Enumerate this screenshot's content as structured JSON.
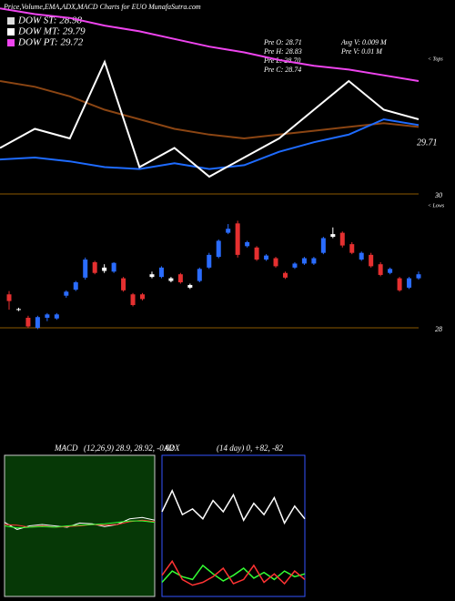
{
  "header": {
    "title": "Price,Volume,EMA,ADX,MACD Charts for EUO MunafaSutra.com",
    "legend": [
      {
        "label": "DOW ST: 28.98",
        "color": "#dddddd"
      },
      {
        "label": "DOW MT: 29.79",
        "color": "#ffffff"
      },
      {
        "label": "DOW PT: 29.72",
        "color": "#ee44ee"
      }
    ],
    "stats": [
      "Pre O: 28.71",
      "Avg V: 0.009 M",
      "Pre H: 28.83",
      "Pre V: 0.01 M",
      "Pre L: 28.70",
      "Pre C: 28.74"
    ]
  },
  "chart_data": [
    {
      "type": "line",
      "ylim": [
        0,
        100
      ],
      "annotations": [
        "29.71",
        "< Tops"
      ],
      "series": [
        {
          "color": "#ee44ee",
          "values": [
            98,
            95,
            93,
            89,
            86,
            82,
            78,
            75,
            71,
            68,
            66,
            63,
            60
          ]
        },
        {
          "color": "#8b4513",
          "values": [
            60,
            57,
            52,
            45,
            40,
            35,
            32,
            30,
            32,
            34,
            36,
            38,
            36
          ]
        },
        {
          "color": "#1e6bff",
          "values": [
            19,
            20,
            18,
            15,
            14,
            17,
            14,
            16,
            23,
            28,
            32,
            40,
            37
          ]
        },
        {
          "color": "#ffffff",
          "values": [
            25,
            35,
            30,
            70,
            15,
            25,
            10,
            20,
            30,
            45,
            60,
            45,
            40
          ]
        }
      ]
    },
    {
      "type": "candlestick",
      "ylim": [
        28,
        30
      ],
      "yticks": [
        28,
        30
      ],
      "annotations": [
        "< Lows"
      ],
      "candles": [
        [
          28.5,
          28.55,
          28.27,
          28.4
        ],
        [
          28.27,
          28.3,
          28.25,
          28.28
        ],
        [
          28.15,
          28.18,
          28.0,
          28.02
        ],
        [
          28.0,
          28.18,
          27.98,
          28.16
        ],
        [
          28.15,
          28.22,
          28.1,
          28.2
        ],
        [
          28.14,
          28.22,
          28.12,
          28.2
        ],
        [
          28.48,
          28.56,
          28.45,
          28.54
        ],
        [
          28.57,
          28.7,
          28.55,
          28.68
        ],
        [
          28.75,
          29.05,
          28.72,
          29.02
        ],
        [
          28.98,
          29.0,
          28.8,
          28.82
        ],
        [
          28.85,
          28.95,
          28.82,
          28.9
        ],
        [
          28.84,
          28.98,
          28.82,
          28.97
        ],
        [
          28.74,
          28.76,
          28.54,
          28.56
        ],
        [
          28.5,
          28.52,
          28.32,
          28.34
        ],
        [
          28.5,
          28.52,
          28.41,
          28.43
        ],
        [
          28.76,
          28.84,
          28.74,
          28.8
        ],
        [
          28.76,
          28.92,
          28.74,
          28.9
        ],
        [
          28.7,
          28.76,
          28.68,
          28.74
        ],
        [
          28.8,
          28.82,
          28.66,
          28.68
        ],
        [
          28.6,
          28.66,
          28.58,
          28.64
        ],
        [
          28.7,
          28.9,
          28.68,
          28.88
        ],
        [
          28.9,
          29.12,
          28.88,
          29.09
        ],
        [
          29.06,
          29.32,
          29.04,
          29.3
        ],
        [
          29.42,
          29.55,
          29.4,
          29.48
        ],
        [
          29.56,
          29.6,
          29.05,
          29.09
        ],
        [
          29.22,
          29.3,
          29.2,
          29.28
        ],
        [
          29.2,
          29.22,
          29.0,
          29.02
        ],
        [
          29.02,
          29.1,
          29.0,
          29.08
        ],
        [
          29.04,
          29.06,
          28.9,
          28.92
        ],
        [
          28.82,
          28.84,
          28.73,
          28.75
        ],
        [
          28.9,
          28.98,
          28.88,
          28.96
        ],
        [
          28.96,
          29.06,
          28.94,
          29.04
        ],
        [
          28.96,
          29.06,
          28.94,
          29.04
        ],
        [
          29.12,
          29.36,
          29.1,
          29.34
        ],
        [
          29.36,
          29.5,
          29.34,
          29.4
        ],
        [
          29.42,
          29.44,
          29.2,
          29.23
        ],
        [
          29.25,
          29.28,
          29.1,
          29.12
        ],
        [
          29.02,
          29.14,
          29.0,
          29.12
        ],
        [
          29.09,
          29.12,
          28.9,
          28.92
        ],
        [
          28.95,
          28.98,
          28.77,
          28.79
        ],
        [
          28.82,
          28.9,
          28.8,
          28.88
        ],
        [
          28.74,
          28.76,
          28.54,
          28.56
        ],
        [
          28.6,
          28.76,
          28.58,
          28.74
        ],
        [
          28.74,
          28.84,
          28.72,
          28.8
        ]
      ]
    },
    {
      "type": "line",
      "title": "MACD",
      "subtitle": "(12,26,9) 28.9, 28.92, -0.02",
      "ylim": [
        -1,
        1
      ],
      "series": [
        {
          "color": "#ffffff",
          "values": [
            0.05,
            -0.05,
            0.0,
            0.02,
            0.0,
            -0.02,
            0.04,
            0.03,
            -0.01,
            0.02,
            0.1,
            0.12,
            0.08
          ]
        },
        {
          "color": "#ff3333",
          "values": [
            0.02,
            0.01,
            -0.02,
            0.0,
            -0.02,
            -0.01,
            0.0,
            0.02,
            0.01,
            0.02,
            0.06,
            0.08,
            0.06
          ]
        },
        {
          "color": "#33ff33",
          "values": [
            0.0,
            -0.03,
            -0.02,
            -0.01,
            -0.02,
            0.0,
            0.01,
            0.02,
            0.03,
            0.05,
            0.07,
            0.07,
            0.05
          ]
        }
      ]
    },
    {
      "type": "line",
      "title": "ADX",
      "subtitle": "(14  day) 0, +82, -82",
      "ylim": [
        0,
        100
      ],
      "series": [
        {
          "color": "#ffffff",
          "values": [
            60,
            75,
            58,
            62,
            55,
            68,
            60,
            72,
            54,
            66,
            58,
            70,
            52,
            64,
            55
          ]
        },
        {
          "color": "#33ff33",
          "values": [
            10,
            18,
            14,
            12,
            22,
            16,
            11,
            15,
            20,
            13,
            17,
            12,
            18,
            14,
            16
          ]
        },
        {
          "color": "#ff3333",
          "values": [
            15,
            25,
            12,
            8,
            10,
            14,
            20,
            9,
            12,
            22,
            10,
            16,
            9,
            18,
            12
          ]
        }
      ]
    }
  ]
}
